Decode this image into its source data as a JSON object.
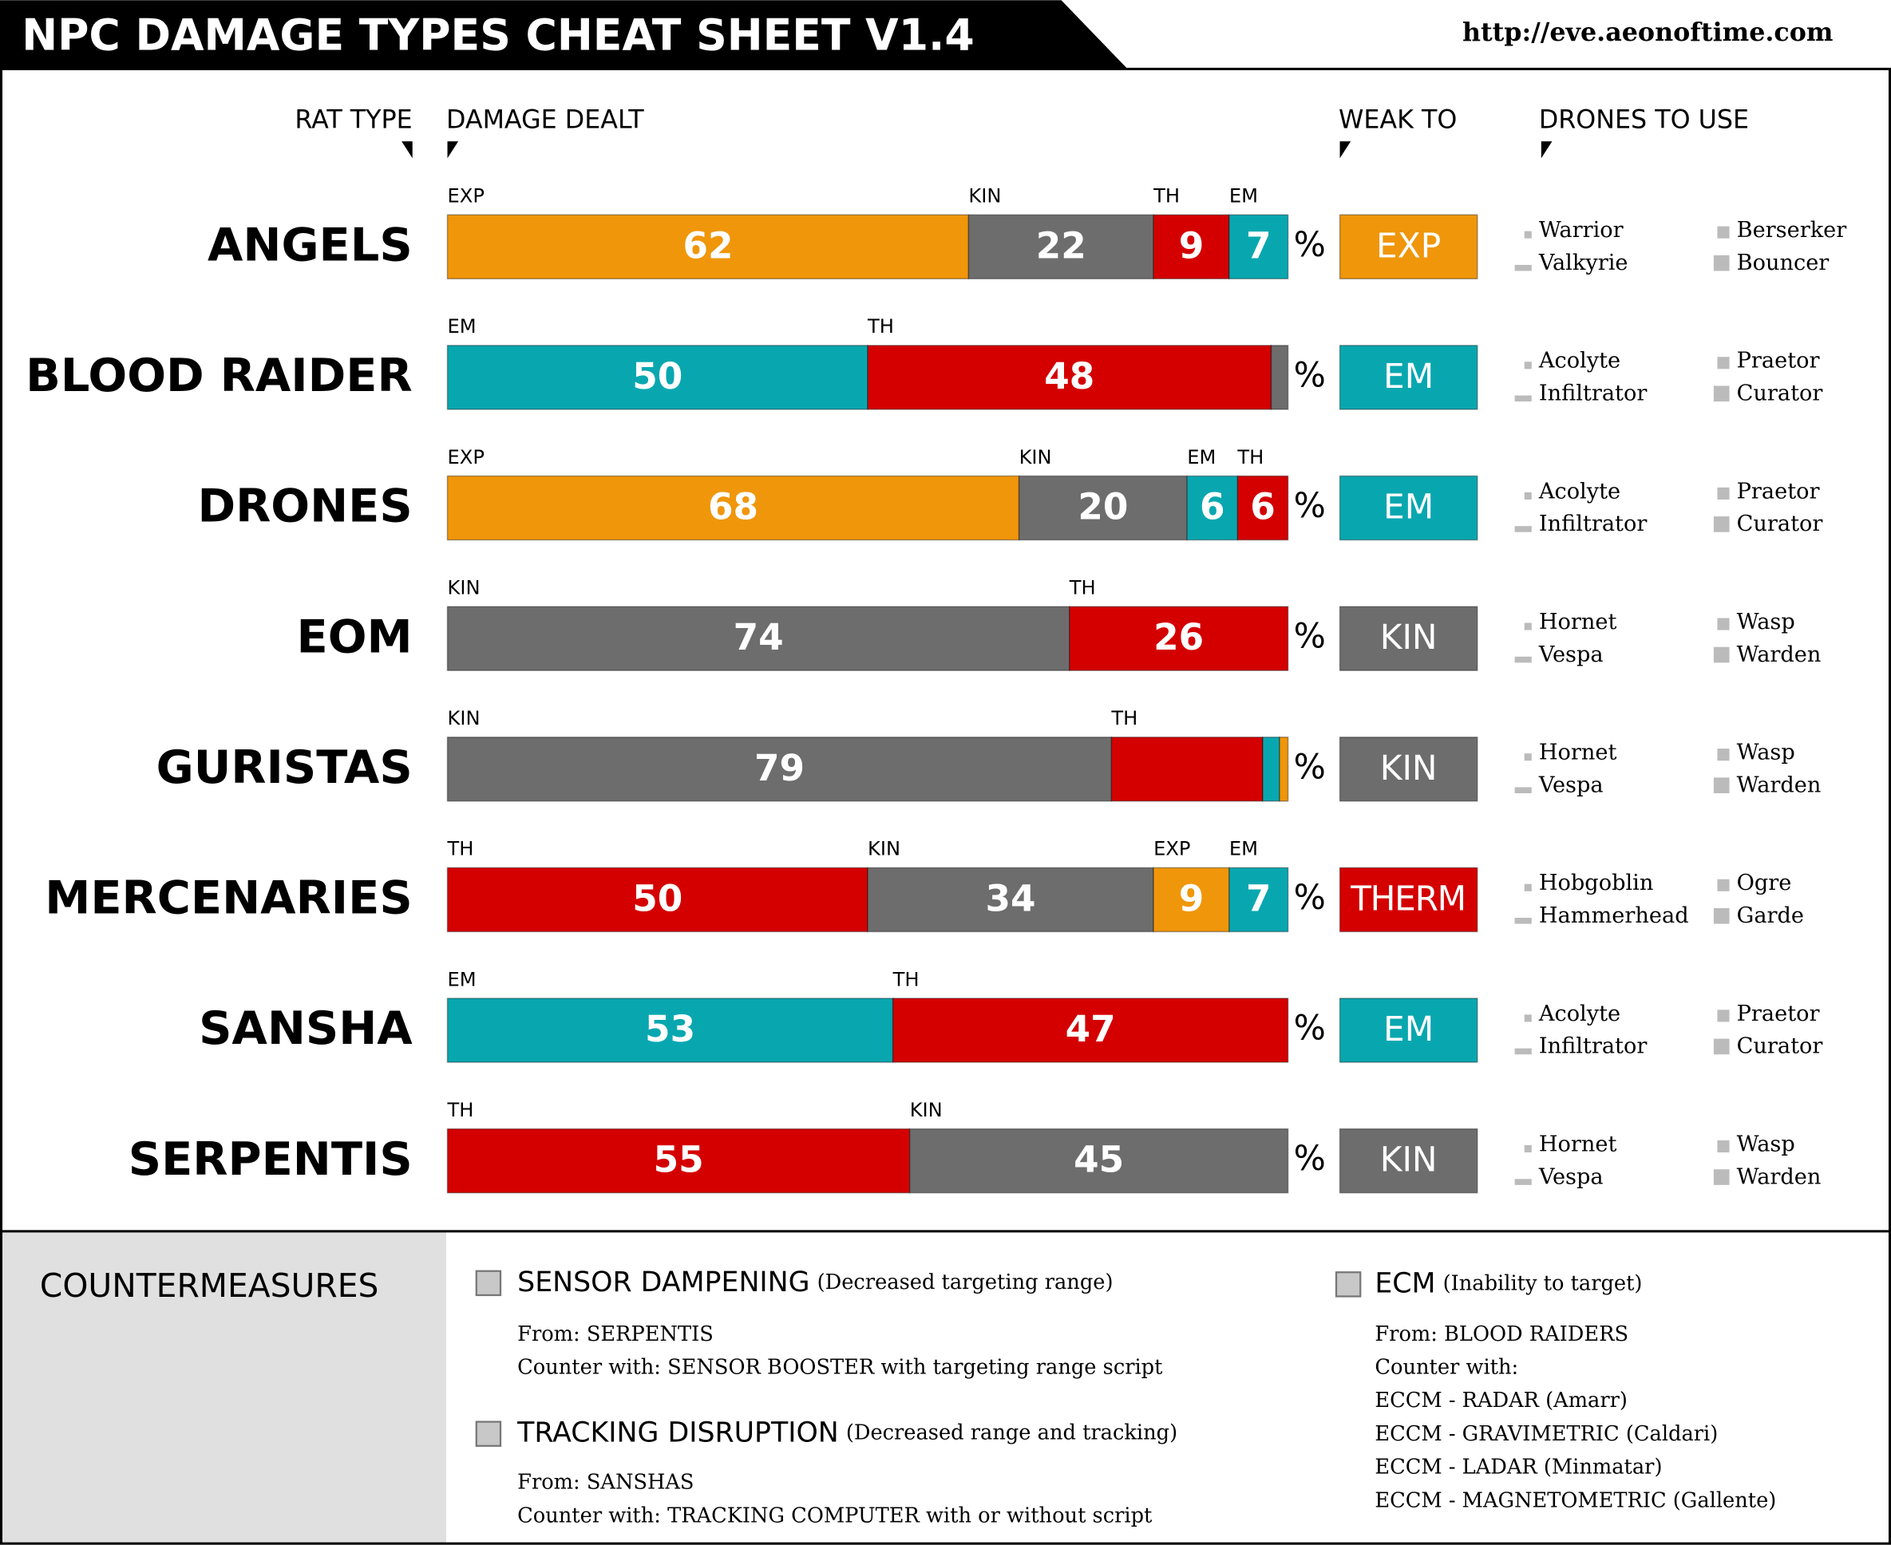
{
  "header": {
    "title": "NPC DAMAGE TYPES CHEAT SHEET V1.4",
    "url": "http://eve.aeonoftime.com"
  },
  "columns": [
    "RAT TYPE",
    "DAMAGE DEALT",
    "WEAK TO",
    "DRONES TO USE"
  ],
  "percent_sign": "%",
  "xlim": [
    0,
    100
  ],
  "rows": [
    {
      "name": "ANGELS",
      "segments": [
        {
          "type": "EXP",
          "value": 62,
          "color": "#f0960a"
        },
        {
          "type": "KIN",
          "value": 22,
          "color": "#6d6d6d"
        },
        {
          "type": "TH",
          "value": 9,
          "color": "#d40000"
        },
        {
          "type": "EM",
          "value": 7,
          "color": "#08a7b0"
        }
      ],
      "weak_to": "EXP",
      "weak_color": "#f0960a",
      "drones": [
        "Warrior",
        "Valkyrie",
        "Berserker",
        "Bouncer"
      ]
    },
    {
      "name": "BLOOD RAIDER",
      "segments": [
        {
          "type": "EM",
          "value": 50,
          "color": "#08a7b0"
        },
        {
          "type": "TH",
          "value": 48,
          "color": "#d40000"
        },
        {
          "type": null,
          "value": 2,
          "color": "#6d6d6d",
          "print_value": false
        }
      ],
      "weak_to": "EM",
      "weak_color": "#08a7b0",
      "drones": [
        "Acolyte",
        "Infiltrator",
        "Praetor",
        "Curator"
      ]
    },
    {
      "name": "DRONES",
      "segments": [
        {
          "type": "EXP",
          "value": 68,
          "color": "#f0960a"
        },
        {
          "type": "KIN",
          "value": 20,
          "color": "#6d6d6d"
        },
        {
          "type": "EM",
          "value": 6,
          "color": "#08a7b0"
        },
        {
          "type": "TH",
          "value": 6,
          "color": "#d40000"
        }
      ],
      "weak_to": "EM",
      "weak_color": "#08a7b0",
      "drones": [
        "Acolyte",
        "Infiltrator",
        "Praetor",
        "Curator"
      ]
    },
    {
      "name": "EOM",
      "segments": [
        {
          "type": "KIN",
          "value": 74,
          "color": "#6d6d6d"
        },
        {
          "type": "TH",
          "value": 26,
          "color": "#d40000"
        }
      ],
      "weak_to": "KIN",
      "weak_color": "#6d6d6d",
      "drones": [
        "Hornet",
        "Vespa",
        "Wasp",
        "Warden"
      ]
    },
    {
      "name": "GURISTAS",
      "segments": [
        {
          "type": "KIN",
          "value": 79,
          "color": "#6d6d6d"
        },
        {
          "type": "TH",
          "value": 18,
          "color": "#d40000",
          "print_value": false
        },
        {
          "type": null,
          "value": 2,
          "color": "#08a7b0",
          "print_value": false
        },
        {
          "type": null,
          "value": 1,
          "color": "#f0960a",
          "print_value": false
        }
      ],
      "weak_to": "KIN",
      "weak_color": "#6d6d6d",
      "drones": [
        "Hornet",
        "Vespa",
        "Wasp",
        "Warden"
      ]
    },
    {
      "name": "MERCENARIES",
      "segments": [
        {
          "type": "TH",
          "value": 50,
          "color": "#d40000"
        },
        {
          "type": "KIN",
          "value": 34,
          "color": "#6d6d6d"
        },
        {
          "type": "EXP",
          "value": 9,
          "color": "#f0960a"
        },
        {
          "type": "EM",
          "value": 7,
          "color": "#08a7b0"
        }
      ],
      "weak_to": "THERM",
      "weak_color": "#d40000",
      "drones": [
        "Hobgoblin",
        "Hammerhead",
        "Ogre",
        "Garde"
      ]
    },
    {
      "name": "SANSHA",
      "segments": [
        {
          "type": "EM",
          "value": 53,
          "color": "#08a7b0"
        },
        {
          "type": "TH",
          "value": 47,
          "color": "#d40000"
        }
      ],
      "weak_to": "EM",
      "weak_color": "#08a7b0",
      "drones": [
        "Acolyte",
        "Infiltrator",
        "Praetor",
        "Curator"
      ]
    },
    {
      "name": "SERPENTIS",
      "segments": [
        {
          "type": "TH",
          "value": 55,
          "color": "#d40000"
        },
        {
          "type": "KIN",
          "value": 45,
          "color": "#6d6d6d"
        }
      ],
      "weak_to": "KIN",
      "weak_color": "#6d6d6d",
      "drones": [
        "Hornet",
        "Vespa",
        "Wasp",
        "Warden"
      ]
    }
  ],
  "countermeasures": {
    "title": "COUNTERMEASURES",
    "items": [
      {
        "name": "SENSOR DAMPENING",
        "note": "(Decreased targeting range)",
        "lines": [
          "From: SERPENTIS",
          "Counter with:  SENSOR BOOSTER with targeting range script"
        ]
      },
      {
        "name": "TRACKING DISRUPTION",
        "note": "(Decreased range and tracking)",
        "lines": [
          "From: SANSHAS",
          "Counter with:  TRACKING COMPUTER with or without script"
        ]
      },
      {
        "name": "ECM",
        "note": "(Inability to target)",
        "lines": [
          "From: BLOOD RAIDERS",
          "Counter with:",
          "ECCM - RADAR (Amarr)",
          "ECCM - GRAVIMETRIC (Caldari)",
          "ECCM - LADAR (Minmatar)",
          "ECCM - MAGNETOMETRIC (Gallente)"
        ]
      }
    ]
  }
}
